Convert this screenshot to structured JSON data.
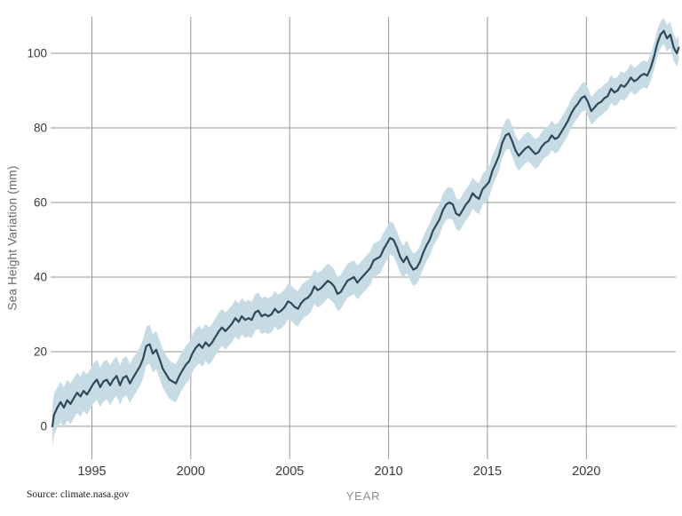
{
  "figure": {
    "source_note": "Source: climate.nasa.gov"
  },
  "chart_data": {
    "type": "line",
    "title": "",
    "xlabel": "YEAR",
    "ylabel": "Sea Height Variation (mm)",
    "x_ticks": [
      1995,
      2000,
      2005,
      2010,
      2015,
      2020
    ],
    "y_ticks": [
      0,
      20,
      40,
      60,
      80,
      100
    ],
    "xlim": [
      1992.9,
      2024.8
    ],
    "ylim": [
      -9,
      110
    ],
    "grid": true,
    "legend_position": "none",
    "colors": {
      "line": "#2f4858",
      "band": "#c7dbe5",
      "grid": "#969696",
      "tick_label": "#3a3a3a",
      "axis_title": "#8c8c8c"
    },
    "band": {
      "halfwidth_start_mm": 5.5,
      "halfwidth_end_mm": 3.5
    },
    "series": [
      {
        "name": "Sea height variation (mm) with uncertainty band",
        "points": [
          [
            1993.0,
            0.0
          ],
          [
            1993.08,
            3.0
          ],
          [
            1993.25,
            5.0
          ],
          [
            1993.42,
            6.5
          ],
          [
            1993.58,
            5.0
          ],
          [
            1993.75,
            7.0
          ],
          [
            1993.92,
            6.0
          ],
          [
            1994.08,
            7.5
          ],
          [
            1994.25,
            9.0
          ],
          [
            1994.42,
            8.0
          ],
          [
            1994.58,
            9.5
          ],
          [
            1994.75,
            8.5
          ],
          [
            1994.92,
            10.0
          ],
          [
            1995.08,
            11.5
          ],
          [
            1995.25,
            12.5
          ],
          [
            1995.42,
            10.5
          ],
          [
            1995.58,
            12.0
          ],
          [
            1995.75,
            12.5
          ],
          [
            1995.92,
            11.0
          ],
          [
            1996.08,
            12.5
          ],
          [
            1996.25,
            13.5
          ],
          [
            1996.42,
            11.0
          ],
          [
            1996.58,
            13.0
          ],
          [
            1996.75,
            13.5
          ],
          [
            1996.92,
            11.5
          ],
          [
            1997.08,
            13.0
          ],
          [
            1997.25,
            14.5
          ],
          [
            1997.42,
            16.0
          ],
          [
            1997.58,
            18.0
          ],
          [
            1997.75,
            21.5
          ],
          [
            1997.92,
            22.0
          ],
          [
            1998.08,
            19.5
          ],
          [
            1998.25,
            20.5
          ],
          [
            1998.42,
            18.0
          ],
          [
            1998.58,
            15.5
          ],
          [
            1998.75,
            14.0
          ],
          [
            1998.92,
            12.5
          ],
          [
            1999.08,
            12.0
          ],
          [
            1999.25,
            11.5
          ],
          [
            1999.42,
            13.5
          ],
          [
            1999.58,
            15.0
          ],
          [
            1999.75,
            16.5
          ],
          [
            1999.92,
            17.5
          ],
          [
            2000.08,
            19.5
          ],
          [
            2000.25,
            21.0
          ],
          [
            2000.42,
            22.0
          ],
          [
            2000.58,
            21.0
          ],
          [
            2000.75,
            22.5
          ],
          [
            2000.92,
            21.5
          ],
          [
            2001.08,
            22.5
          ],
          [
            2001.25,
            24.0
          ],
          [
            2001.42,
            25.5
          ],
          [
            2001.58,
            26.5
          ],
          [
            2001.75,
            25.5
          ],
          [
            2001.92,
            26.5
          ],
          [
            2002.08,
            27.5
          ],
          [
            2002.25,
            29.0
          ],
          [
            2002.42,
            28.0
          ],
          [
            2002.58,
            29.5
          ],
          [
            2002.75,
            28.5
          ],
          [
            2002.92,
            29.0
          ],
          [
            2003.08,
            28.5
          ],
          [
            2003.25,
            30.5
          ],
          [
            2003.42,
            31.0
          ],
          [
            2003.58,
            29.5
          ],
          [
            2003.75,
            30.0
          ],
          [
            2003.92,
            29.5
          ],
          [
            2004.08,
            30.0
          ],
          [
            2004.25,
            31.5
          ],
          [
            2004.42,
            30.5
          ],
          [
            2004.58,
            31.0
          ],
          [
            2004.75,
            32.0
          ],
          [
            2004.92,
            33.5
          ],
          [
            2005.08,
            33.0
          ],
          [
            2005.25,
            32.0
          ],
          [
            2005.42,
            31.5
          ],
          [
            2005.58,
            33.0
          ],
          [
            2005.75,
            34.0
          ],
          [
            2005.92,
            34.5
          ],
          [
            2006.08,
            35.5
          ],
          [
            2006.25,
            37.5
          ],
          [
            2006.42,
            36.5
          ],
          [
            2006.58,
            37.0
          ],
          [
            2006.75,
            38.0
          ],
          [
            2006.92,
            39.0
          ],
          [
            2007.08,
            38.5
          ],
          [
            2007.25,
            37.5
          ],
          [
            2007.42,
            35.5
          ],
          [
            2007.58,
            36.0
          ],
          [
            2007.75,
            37.5
          ],
          [
            2007.92,
            39.0
          ],
          [
            2008.08,
            39.5
          ],
          [
            2008.25,
            40.0
          ],
          [
            2008.42,
            38.5
          ],
          [
            2008.58,
            39.5
          ],
          [
            2008.75,
            40.5
          ],
          [
            2008.92,
            41.5
          ],
          [
            2009.08,
            42.5
          ],
          [
            2009.25,
            44.5
          ],
          [
            2009.42,
            45.0
          ],
          [
            2009.58,
            45.5
          ],
          [
            2009.75,
            47.5
          ],
          [
            2009.92,
            49.0
          ],
          [
            2010.08,
            50.5
          ],
          [
            2010.25,
            50.0
          ],
          [
            2010.42,
            48.0
          ],
          [
            2010.58,
            45.5
          ],
          [
            2010.75,
            44.0
          ],
          [
            2010.92,
            45.5
          ],
          [
            2011.08,
            43.5
          ],
          [
            2011.25,
            42.0
          ],
          [
            2011.42,
            42.5
          ],
          [
            2011.58,
            44.0
          ],
          [
            2011.75,
            46.5
          ],
          [
            2011.92,
            48.5
          ],
          [
            2012.08,
            50.0
          ],
          [
            2012.25,
            52.5
          ],
          [
            2012.42,
            54.0
          ],
          [
            2012.58,
            55.5
          ],
          [
            2012.75,
            58.0
          ],
          [
            2012.92,
            59.5
          ],
          [
            2013.08,
            60.0
          ],
          [
            2013.25,
            59.5
          ],
          [
            2013.42,
            57.0
          ],
          [
            2013.58,
            56.5
          ],
          [
            2013.75,
            58.0
          ],
          [
            2013.92,
            59.5
          ],
          [
            2014.08,
            60.5
          ],
          [
            2014.25,
            62.5
          ],
          [
            2014.42,
            61.5
          ],
          [
            2014.58,
            61.0
          ],
          [
            2014.75,
            63.5
          ],
          [
            2014.92,
            64.5
          ],
          [
            2015.08,
            65.5
          ],
          [
            2015.25,
            68.5
          ],
          [
            2015.42,
            70.5
          ],
          [
            2015.58,
            72.5
          ],
          [
            2015.75,
            76.0
          ],
          [
            2015.92,
            78.0
          ],
          [
            2016.08,
            78.5
          ],
          [
            2016.25,
            76.5
          ],
          [
            2016.42,
            74.0
          ],
          [
            2016.58,
            72.5
          ],
          [
            2016.75,
            73.5
          ],
          [
            2016.92,
            74.5
          ],
          [
            2017.08,
            75.0
          ],
          [
            2017.25,
            74.0
          ],
          [
            2017.42,
            73.0
          ],
          [
            2017.58,
            73.5
          ],
          [
            2017.75,
            75.0
          ],
          [
            2017.92,
            76.0
          ],
          [
            2018.08,
            76.5
          ],
          [
            2018.25,
            78.0
          ],
          [
            2018.42,
            77.0
          ],
          [
            2018.58,
            77.5
          ],
          [
            2018.75,
            79.0
          ],
          [
            2018.92,
            80.5
          ],
          [
            2019.08,
            82.0
          ],
          [
            2019.25,
            84.0
          ],
          [
            2019.42,
            85.5
          ],
          [
            2019.58,
            86.5
          ],
          [
            2019.75,
            88.0
          ],
          [
            2019.92,
            88.5
          ],
          [
            2020.08,
            87.0
          ],
          [
            2020.25,
            84.5
          ],
          [
            2020.42,
            85.5
          ],
          [
            2020.58,
            86.5
          ],
          [
            2020.75,
            87.0
          ],
          [
            2020.92,
            88.0
          ],
          [
            2021.08,
            88.5
          ],
          [
            2021.25,
            90.5
          ],
          [
            2021.42,
            89.5
          ],
          [
            2021.58,
            90.0
          ],
          [
            2021.75,
            91.5
          ],
          [
            2021.92,
            91.0
          ],
          [
            2022.08,
            92.0
          ],
          [
            2022.25,
            93.5
          ],
          [
            2022.42,
            92.5
          ],
          [
            2022.58,
            93.0
          ],
          [
            2022.75,
            94.0
          ],
          [
            2022.92,
            94.5
          ],
          [
            2023.08,
            94.0
          ],
          [
            2023.25,
            96.0
          ],
          [
            2023.42,
            99.0
          ],
          [
            2023.58,
            102.5
          ],
          [
            2023.75,
            105.0
          ],
          [
            2023.92,
            106.0
          ],
          [
            2024.08,
            104.0
          ],
          [
            2024.25,
            105.0
          ],
          [
            2024.42,
            101.5
          ],
          [
            2024.58,
            100.0
          ],
          [
            2024.67,
            101.5
          ]
        ]
      }
    ]
  }
}
